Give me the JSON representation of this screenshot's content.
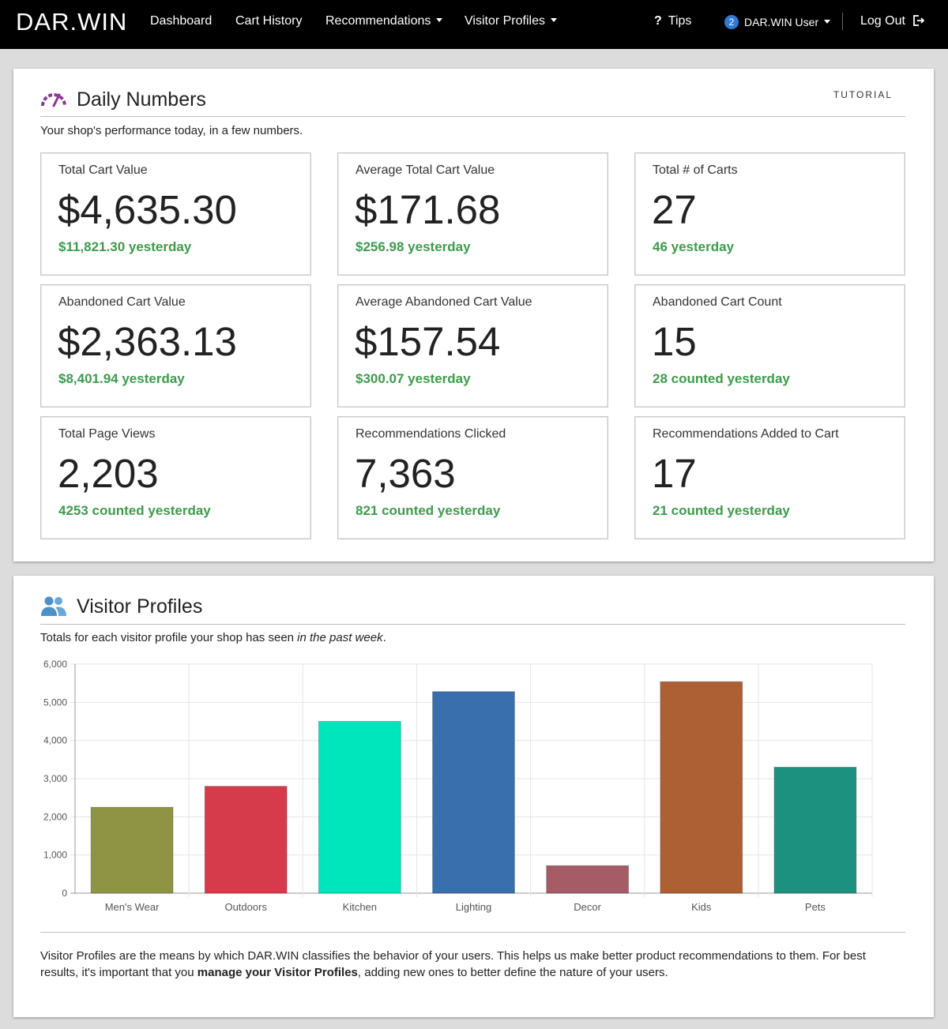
{
  "navbar": {
    "brand": "DAR.WIN",
    "items": [
      {
        "label": "Dashboard"
      },
      {
        "label": "Cart History"
      },
      {
        "label": "Recommendations"
      },
      {
        "label": "Visitor Profiles"
      }
    ],
    "tips_label": "Tips",
    "user_badge": "2",
    "user_label": "DAR.WIN User",
    "logout_label": "Log Out"
  },
  "daily": {
    "title": "Daily Numbers",
    "tutorial": "TUTORIAL",
    "subtitle": "Your shop's performance today, in a few numbers.",
    "cards": [
      {
        "label": "Total Cart Value",
        "value": "$4,635.30",
        "sub": "$11,821.30 yesterday"
      },
      {
        "label": "Average Total Cart Value",
        "value": "$171.68",
        "sub": "$256.98 yesterday"
      },
      {
        "label": "Total # of Carts",
        "value": "27",
        "sub": "46 yesterday"
      },
      {
        "label": "Abandoned Cart Value",
        "value": "$2,363.13",
        "sub": "$8,401.94 yesterday"
      },
      {
        "label": "Average Abandoned Cart Value",
        "value": "$157.54",
        "sub": "$300.07 yesterday"
      },
      {
        "label": "Abandoned Cart Count",
        "value": "15",
        "sub": "28 counted yesterday"
      },
      {
        "label": "Total Page Views",
        "value": "2,203",
        "sub": "4253 counted yesterday"
      },
      {
        "label": "Recommendations Clicked",
        "value": "7,363",
        "sub": "821 counted yesterday"
      },
      {
        "label": "Recommendations Added to Cart",
        "value": "17",
        "sub": "21 counted yesterday"
      }
    ]
  },
  "visitors": {
    "title": "Visitor Profiles",
    "subtitle_plain": "Totals for each visitor profile your shop has seen ",
    "subtitle_em": "in the past week",
    "subtitle_end": ".",
    "footer_a": "Visitor Profiles are the means by which DAR.WIN classifies the behavior of your users. This helps us make better product recommendations to them. For best results, it's important that you ",
    "footer_link": "manage your Visitor Profiles",
    "footer_b": ", adding new ones to better define the nature of your users."
  },
  "chart_data": {
    "type": "bar",
    "categories": [
      "Men's Wear",
      "Outdoors",
      "Kitchen",
      "Lighting",
      "Decor",
      "Kids",
      "Pets"
    ],
    "values": [
      2250,
      2800,
      4500,
      5280,
      720,
      5540,
      3300
    ],
    "colors": [
      "#8f9445",
      "#d63b4b",
      "#00e6bc",
      "#3a6fae",
      "#a65c67",
      "#ad6034",
      "#1d917f"
    ],
    "ylim": [
      0,
      6000
    ],
    "yticks": [
      0,
      1000,
      2000,
      3000,
      4000,
      5000,
      6000
    ],
    "ytick_labels": [
      "0",
      "1,000",
      "2,000",
      "3,000",
      "4,000",
      "5,000",
      "6,000"
    ],
    "grid": true
  }
}
